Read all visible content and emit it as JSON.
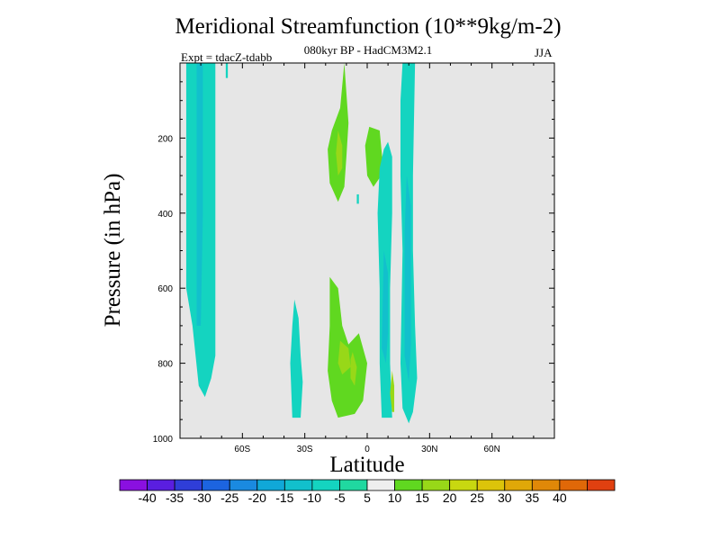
{
  "chart_data": {
    "type": "contour",
    "title": "Meridional Streamfunction (10**9kg/m-2)",
    "subtitle": "080kyr BP - HadCM3M2.1",
    "left_label": "Expt = tdacZ-tdabb",
    "right_label": "JJA",
    "xlabel": "Latitude",
    "ylabel": "Pressure (in hPa)",
    "xlim": [
      -90,
      90
    ],
    "ylim": [
      1000,
      0
    ],
    "x_ticks": [
      -60,
      -30,
      0,
      30,
      60
    ],
    "x_tick_labels": [
      "60S",
      "30S",
      "0",
      "30N",
      "60N"
    ],
    "y_ticks": [
      200,
      400,
      600,
      800,
      1000
    ],
    "y_tick_labels": [
      "200",
      "400",
      "600",
      "800",
      "1000"
    ],
    "background_color": "#e6e6e6",
    "colorbar": {
      "labels": [
        "-40",
        "-35",
        "-30",
        "-25",
        "-20",
        "-15",
        "-10",
        "-5",
        "5",
        "10",
        "15",
        "20",
        "25",
        "30",
        "35",
        "40"
      ],
      "colors": [
        "#8a10e0",
        "#5a1ee0",
        "#2f3ed8",
        "#1c64e0",
        "#1a8ae0",
        "#10a8d8",
        "#12c0cc",
        "#14d4c0",
        "#20d8a0",
        "#eeeeee",
        "#60d820",
        "#98d818",
        "#c8d810",
        "#dcc40a",
        "#e0a808",
        "#e08808",
        "#e06808",
        "#e04010"
      ]
    },
    "regions": [
      {
        "name": "sh-high-lat-negative-cell",
        "sign": "negative",
        "value_class": -5,
        "lat_range": [
          -87,
          -73
        ],
        "pressure_range": [
          0,
          890
        ]
      },
      {
        "name": "subtropical-sh-negative-cell",
        "sign": "negative",
        "value_class": -5,
        "lat_range": [
          -37,
          -31
        ],
        "pressure_range": [
          630,
          945
        ]
      },
      {
        "name": "upper-tropical-positive-cell",
        "sign": "positive",
        "value_class": 5,
        "lat_range": [
          -19,
          -9
        ],
        "pressure_range": [
          0,
          370
        ]
      },
      {
        "name": "lower-tropical-positive-cell",
        "sign": "positive",
        "value_class": 5,
        "lat_range": [
          -19,
          0
        ],
        "pressure_range": [
          570,
          945
        ]
      },
      {
        "name": "lower-tropical-positive-core",
        "sign": "positive",
        "value_class": 10,
        "lat_range": [
          -14,
          -5
        ],
        "pressure_range": [
          730,
          860
        ]
      },
      {
        "name": "upper-nh-positive-cell",
        "sign": "positive",
        "value_class": 5,
        "lat_range": [
          -1,
          8
        ],
        "pressure_range": [
          170,
          330
        ]
      },
      {
        "name": "nh-tropical-negative-cell",
        "sign": "negative",
        "value_class": -5,
        "lat_range": [
          5,
          12
        ],
        "pressure_range": [
          210,
          945
        ]
      },
      {
        "name": "nh-subtropical-negative-cell",
        "sign": "negative",
        "value_class": -5,
        "lat_range": [
          16,
          24
        ],
        "pressure_range": [
          0,
          960
        ]
      }
    ]
  }
}
